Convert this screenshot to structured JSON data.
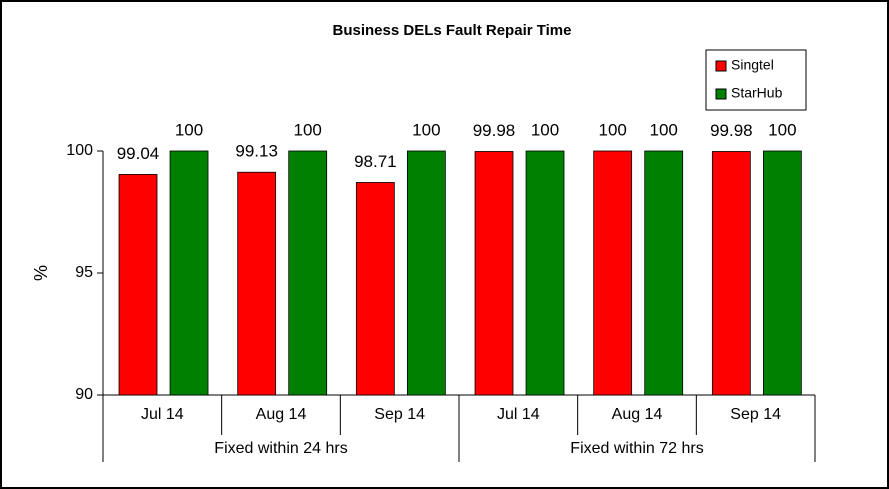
{
  "chart_data": {
    "type": "bar",
    "title": "Business DELs Fault Repair Time",
    "y_label": "%",
    "groups": [
      {
        "label": "Fixed within 24 hrs",
        "categories": [
          "Jul 14",
          "Aug 14",
          "Sep 14"
        ]
      },
      {
        "label": "Fixed within 72 hrs",
        "categories": [
          "Jul 14",
          "Aug 14",
          "Sep 14"
        ]
      }
    ],
    "series": [
      {
        "name": "Singtel",
        "color": "#ff0000",
        "values": [
          99.04,
          99.13,
          98.71,
          99.98,
          100,
          99.98
        ]
      },
      {
        "name": "StarHub",
        "color": "#008000",
        "values": [
          100,
          100,
          100,
          100,
          100,
          100
        ]
      }
    ],
    "ylim": [
      90,
      100
    ],
    "yticks": [
      90,
      95,
      100
    ],
    "legend": "top-right"
  }
}
